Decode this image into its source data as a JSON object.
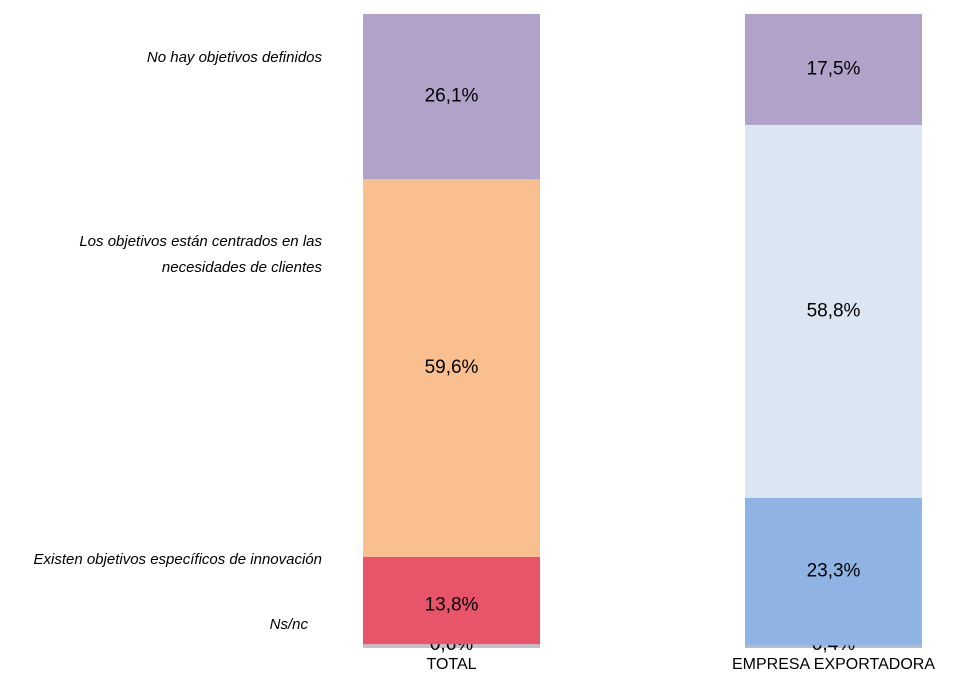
{
  "chart_data": {
    "type": "stacked-bar",
    "categories": [
      "TOTAL",
      "EMPRESA EXPORTADORA"
    ],
    "series": [
      {
        "name": "Ns/nc",
        "colors": [
          "#c2bfca",
          "#b5bcd0"
        ],
        "values": [
          0.6,
          0.4
        ],
        "value_labels": [
          "0,6%",
          "0,4%"
        ]
      },
      {
        "name": "Existen objetivos específicos de innovación",
        "colors": [
          "#e8546a",
          "#8fb4e3"
        ],
        "values": [
          13.8,
          23.3
        ],
        "value_labels": [
          "13,8%",
          "23,3%"
        ]
      },
      {
        "name": "Los objetivos están centrados en las necesidades de clientes",
        "colors": [
          "#f9bf8f",
          "#dce6f2"
        ],
        "values": [
          59.6,
          58.8
        ],
        "value_labels": [
          "59,6%",
          "58,8%"
        ]
      },
      {
        "name": "No hay objetivos definidos",
        "colors": [
          "#b1a2c9",
          "#b1a2c9"
        ],
        "values": [
          26.1,
          17.5
        ],
        "value_labels": [
          "26,1%",
          "17,5%"
        ]
      }
    ]
  }
}
